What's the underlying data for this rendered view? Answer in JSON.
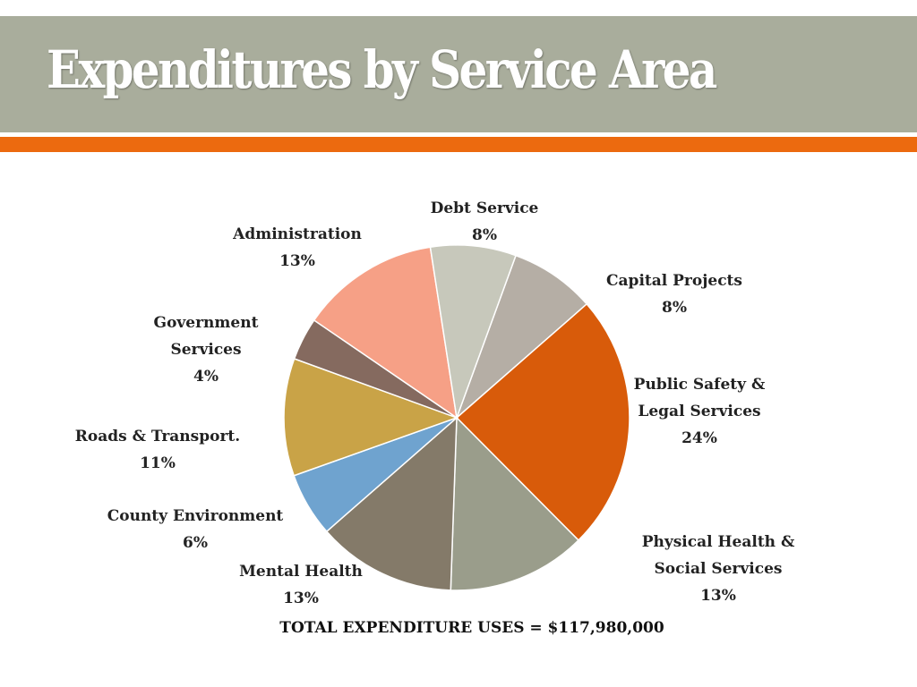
{
  "header": {
    "title": "Expenditures by Service Area"
  },
  "chart_data": {
    "type": "pie",
    "title": "Expenditures by Service Area",
    "total_label": "TOTAL EXPENDITURE USES = $117,980,000",
    "slices": [
      {
        "label": "Debt Service",
        "lines": [
          "Debt Service",
          "8%"
        ],
        "value": 8,
        "color": "#b5aea5"
      },
      {
        "label": "Public Safety & Legal Services",
        "lines": [
          "Public Safety &",
          "Legal Services",
          "24%"
        ],
        "value": 24,
        "color": "#d85b0a"
      },
      {
        "label": "Physical Health & Social Services",
        "lines": [
          "Physical Health &",
          "Social Services",
          "13%"
        ],
        "value": 13,
        "color": "#9a9d8b"
      },
      {
        "label": "Mental Health",
        "lines": [
          "Mental Health",
          "13%"
        ],
        "value": 13,
        "color": "#847a69"
      },
      {
        "label": "County Environment",
        "lines": [
          "County Environment",
          "6%"
        ],
        "value": 6,
        "color": "#6fa3cf"
      },
      {
        "label": "Roads & Transport.",
        "lines": [
          "Roads & Transport.",
          "11%"
        ],
        "value": 11,
        "color": "#c9a347"
      },
      {
        "label": "Government Services",
        "lines": [
          "Government",
          "Services",
          "4%"
        ],
        "value": 4,
        "color": "#856a5f"
      },
      {
        "label": "Administration",
        "lines": [
          "Administration",
          "13%"
        ],
        "value": 13,
        "color": "#f6a086"
      },
      {
        "label": "Capital Projects",
        "lines": [
          "Capital Projects",
          "8%"
        ],
        "value": 8,
        "color": "#c7c8bb"
      }
    ]
  }
}
